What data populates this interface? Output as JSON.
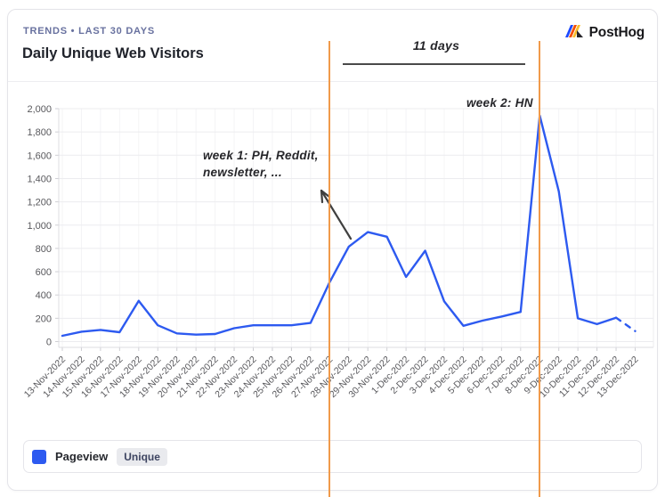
{
  "header": {
    "eyebrow": "TRENDS • LAST 30 DAYS",
    "title": "Daily Unique Web Visitors"
  },
  "brand": {
    "name": "PostHog"
  },
  "annotations": {
    "span_label": "11 days",
    "week1_line1": "week 1: PH, Reddit,",
    "week1_line2": "newsletter, ...",
    "week2": "week 2: HN"
  },
  "legend": {
    "series": "Pageview",
    "badge": "Unique"
  },
  "colors": {
    "line": "#2d5af0",
    "vline": "#f09a4b",
    "eyebrow": "#68719f",
    "logo_blue": "#1d4aff",
    "logo_red": "#f54e00",
    "logo_yellow": "#f9bd2b"
  },
  "chart_data": {
    "type": "line",
    "title": "Daily Unique Web Visitors",
    "x": [
      "13-Nov-2022",
      "14-Nov-2022",
      "15-Nov-2022",
      "16-Nov-2022",
      "17-Nov-2022",
      "18-Nov-2022",
      "19-Nov-2022",
      "20-Nov-2022",
      "21-Nov-2022",
      "22-Nov-2022",
      "23-Nov-2022",
      "24-Nov-2022",
      "25-Nov-2022",
      "26-Nov-2022",
      "27-Nov-2022",
      "28-Nov-2022",
      "29-Nov-2022",
      "30-Nov-2022",
      "1-Dec-2022",
      "2-Dec-2022",
      "3-Dec-2022",
      "4-Dec-2022",
      "5-Dec-2022",
      "6-Dec-2022",
      "7-Dec-2022",
      "8-Dec-2022",
      "9-Dec-2022",
      "10-Dec-2022",
      "11-Dec-2022",
      "12-Dec-2022",
      "13-Dec-2022"
    ],
    "series": [
      {
        "name": "Pageview",
        "qualifier": "Unique",
        "color": "#2d5af0",
        "values": [
          50,
          85,
          100,
          80,
          350,
          140,
          70,
          60,
          65,
          115,
          140,
          140,
          140,
          160,
          510,
          815,
          940,
          900,
          555,
          780,
          345,
          135,
          180,
          215,
          255,
          1940,
          1290,
          200,
          150,
          205,
          90
        ]
      }
    ],
    "ylim": [
      0,
      2000
    ],
    "ytick_step": 200,
    "grid": true,
    "legend_position": "bottom",
    "dashed_tail": true,
    "vlines": [
      {
        "x": "27-Nov-2022"
      },
      {
        "x": "8-Dec-2022"
      }
    ],
    "vline_color": "#f09a4b"
  }
}
